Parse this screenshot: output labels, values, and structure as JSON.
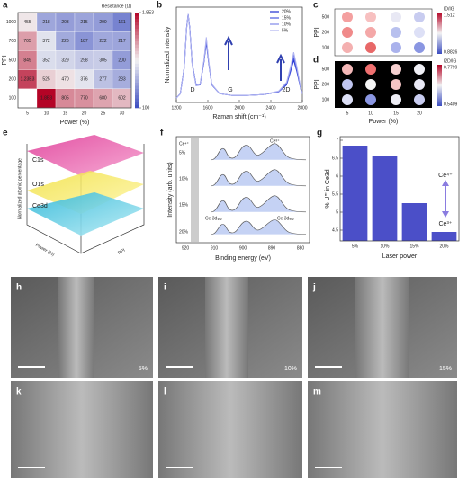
{
  "chart_data": [
    {
      "type": "heatmap",
      "label": "a",
      "title": "Resistance (Ω)",
      "x_label": "Power (%)",
      "y_label": "PPI",
      "categories": [
        "5",
        "10",
        "15",
        "20",
        "25",
        "30"
      ],
      "rows": [
        "1000",
        "700",
        "500",
        "200",
        "100"
      ],
      "values": [
        [
          455,
          218,
          203,
          215,
          200,
          161
        ],
        [
          705,
          372,
          226,
          187,
          222,
          217
        ],
        [
          849,
          352,
          329,
          298,
          305,
          200
        ],
        [
          1230,
          525,
          470,
          376,
          277,
          233
        ],
        [
          null,
          1800,
          805,
          770,
          680,
          602
        ]
      ],
      "value_labels": [
        [
          "455",
          "218",
          "203",
          "215",
          "200",
          "161"
        ],
        [
          "705",
          "372",
          "226",
          "187",
          "222",
          "217"
        ],
        [
          "849",
          "352",
          "329",
          "298",
          "305",
          "200"
        ],
        [
          "1.23E3",
          "525",
          "470",
          "376",
          "277",
          "233"
        ],
        [
          null,
          "1.8E3",
          "805",
          "770",
          "680",
          "602"
        ]
      ],
      "zlim": [
        100,
        1800
      ],
      "zscale": "log",
      "zticks": [
        100,
        {
          "value": 1800,
          "label": "1.8E3"
        }
      ]
    },
    {
      "type": "line",
      "label": "b",
      "x_label": "Raman shift (cm⁻¹)",
      "y_label": "Normalized intensity",
      "x": [
        1200,
        1250,
        1300,
        1330,
        1350,
        1370,
        1400,
        1450,
        1500,
        1550,
        1580,
        1610,
        1650,
        1750,
        1900,
        2100,
        2300,
        2500,
        2600,
        2650,
        2690,
        2730,
        2780,
        2800
      ],
      "xlim": [
        1200,
        2800
      ],
      "xticks": [
        1200,
        1600,
        2000,
        2400,
        2800
      ],
      "ylim": [
        0,
        1.08
      ],
      "annotations": [
        "D",
        "G",
        "2D"
      ],
      "series": [
        {
          "name": "20%",
          "color": "#1f2fd0",
          "values": [
            0.05,
            0.1,
            0.4,
            0.85,
            1.0,
            0.85,
            0.45,
            0.2,
            0.2,
            0.45,
            0.68,
            0.45,
            0.2,
            0.1,
            0.08,
            0.08,
            0.09,
            0.12,
            0.2,
            0.35,
            0.48,
            0.35,
            0.15,
            0.1
          ]
        },
        {
          "name": "15%",
          "color": "#4a5ae0",
          "values": [
            0.05,
            0.1,
            0.4,
            0.84,
            1.0,
            0.84,
            0.44,
            0.2,
            0.2,
            0.46,
            0.7,
            0.46,
            0.2,
            0.1,
            0.08,
            0.08,
            0.09,
            0.12,
            0.21,
            0.37,
            0.51,
            0.37,
            0.15,
            0.1
          ]
        },
        {
          "name": "10%",
          "color": "#8088e8",
          "values": [
            0.05,
            0.1,
            0.39,
            0.84,
            1.0,
            0.84,
            0.44,
            0.19,
            0.2,
            0.47,
            0.72,
            0.47,
            0.2,
            0.1,
            0.08,
            0.08,
            0.09,
            0.12,
            0.22,
            0.39,
            0.54,
            0.39,
            0.16,
            0.1
          ]
        },
        {
          "name": "5%",
          "color": "#b0b4f0",
          "values": [
            0.05,
            0.1,
            0.39,
            0.83,
            1.0,
            0.83,
            0.43,
            0.19,
            0.21,
            0.48,
            0.74,
            0.48,
            0.21,
            0.1,
            0.08,
            0.08,
            0.09,
            0.13,
            0.23,
            0.41,
            0.57,
            0.41,
            0.16,
            0.1
          ]
        }
      ]
    },
    {
      "type": "bar",
      "label": "g",
      "categories": [
        "5%",
        "10%",
        "15%",
        "20%"
      ],
      "values": [
        6.85,
        6.55,
        5.25,
        4.45
      ],
      "ylim": [
        4.2,
        7.1
      ],
      "yticks": [
        4.5,
        5,
        5.5,
        6,
        6.5,
        7
      ],
      "color": "#4b4fc8",
      "x_label": "Laser power",
      "y_label": "% U''' in Ce3d",
      "annotations": [
        "Ce⁴⁺",
        "Ce³⁺"
      ]
    }
  ],
  "panels": {
    "c": {
      "label": "c",
      "y_label": "PPI",
      "yticks": [
        "500",
        "200",
        "100"
      ],
      "colorbar_title": "ID/IG",
      "colorbar_max": "1.512",
      "colorbar_min": "0.8826"
    },
    "d": {
      "label": "d",
      "y_label": "PPI",
      "yticks": [
        "500",
        "200",
        "100"
      ],
      "xticks": [
        "5",
        "10",
        "15",
        "20"
      ],
      "x_label": "Power (%)",
      "colorbar_title": "I2D/IG",
      "colorbar_max": "0.7799",
      "colorbar_min": "0.5409"
    },
    "e": {
      "label": "e",
      "z_label": "Normalized atomic percentage",
      "surfaces": [
        "C1s",
        "O1s",
        "Ce3d"
      ],
      "x_label": "Power (%)",
      "y_label": "PPI"
    },
    "f": {
      "label": "f",
      "rows": [
        "5%",
        "10%",
        "15%",
        "20%"
      ],
      "peaks": [
        "Ce⁴⁺",
        "Ce³⁺",
        "Ce 3d₃/₂",
        "Ce 3d₅/₂"
      ],
      "y_label": "Intensity (arb. units)",
      "x_label": "Binding energy (eV)",
      "xticks": [
        "920",
        "910",
        "900",
        "890",
        "880"
      ]
    },
    "sem": {
      "labels": [
        "h",
        "i",
        "j",
        "k",
        "l",
        "m"
      ],
      "powers": [
        "5%",
        "10%",
        "15%"
      ]
    }
  }
}
